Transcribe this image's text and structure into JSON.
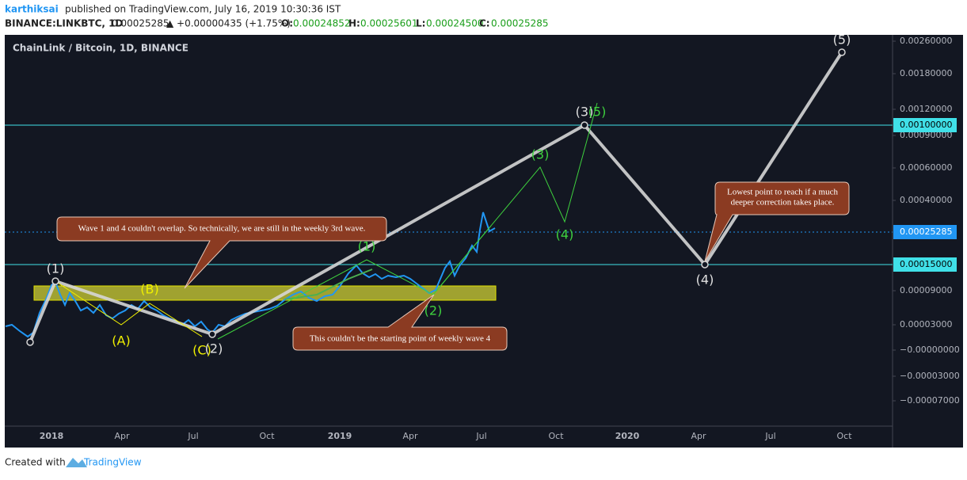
{
  "header": {
    "user": "karthiksai",
    "published": "published on TradingView.com, July 16, 2019 10:30:36 IST"
  },
  "symbol": {
    "name": "BINANCE:LINKBTC, 1D",
    "price": "0.00025285",
    "change": "▲ +0.00000435 (+1.75%)",
    "ohlc": [
      {
        "key": "O:",
        "value": "0.00024852"
      },
      {
        "key": "H:",
        "value": "0.00025601"
      },
      {
        "key": "L:",
        "value": "0.00024500"
      },
      {
        "key": "C:",
        "value": "0.00025285"
      }
    ]
  },
  "chart": {
    "title": "ChainLink / Bitcoin, 1D, BINANCE",
    "y_axis": [
      "0.00260000",
      "0.00180000",
      "0.00120000",
      "0.00090000",
      "0.00060000",
      "0.00040000",
      "0.00009000",
      "0.00003000",
      "−0.00000000",
      "−0.00003000",
      "−0.00007000"
    ],
    "y_markers": [
      "0.00100000",
      "0.00025285",
      "0.00015000"
    ],
    "x_axis": [
      "2018",
      "Apr",
      "Jul",
      "Oct",
      "2019",
      "Apr",
      "Jul",
      "Oct",
      "2020",
      "Apr",
      "Jul",
      "Oct"
    ],
    "waves_primary": [
      "(1)",
      "(2)",
      "(3)",
      "(4)",
      "(5)"
    ],
    "waves_correction": [
      "(A)",
      "(B)",
      "(C)"
    ],
    "waves_minor": [
      "(1)",
      "(2)",
      "(3)",
      "(4)",
      "(5)"
    ],
    "notes": [
      "Wave 1 and 4 couldn't overlap. So technically, we are still in the weekly 3rd wave.",
      "This couldn't be the starting point of weekly wave 4",
      "Lowest point to reach if a much",
      "deeper correction takes place."
    ]
  },
  "footer": {
    "created": "Created with",
    "brand": "TradingView"
  }
}
